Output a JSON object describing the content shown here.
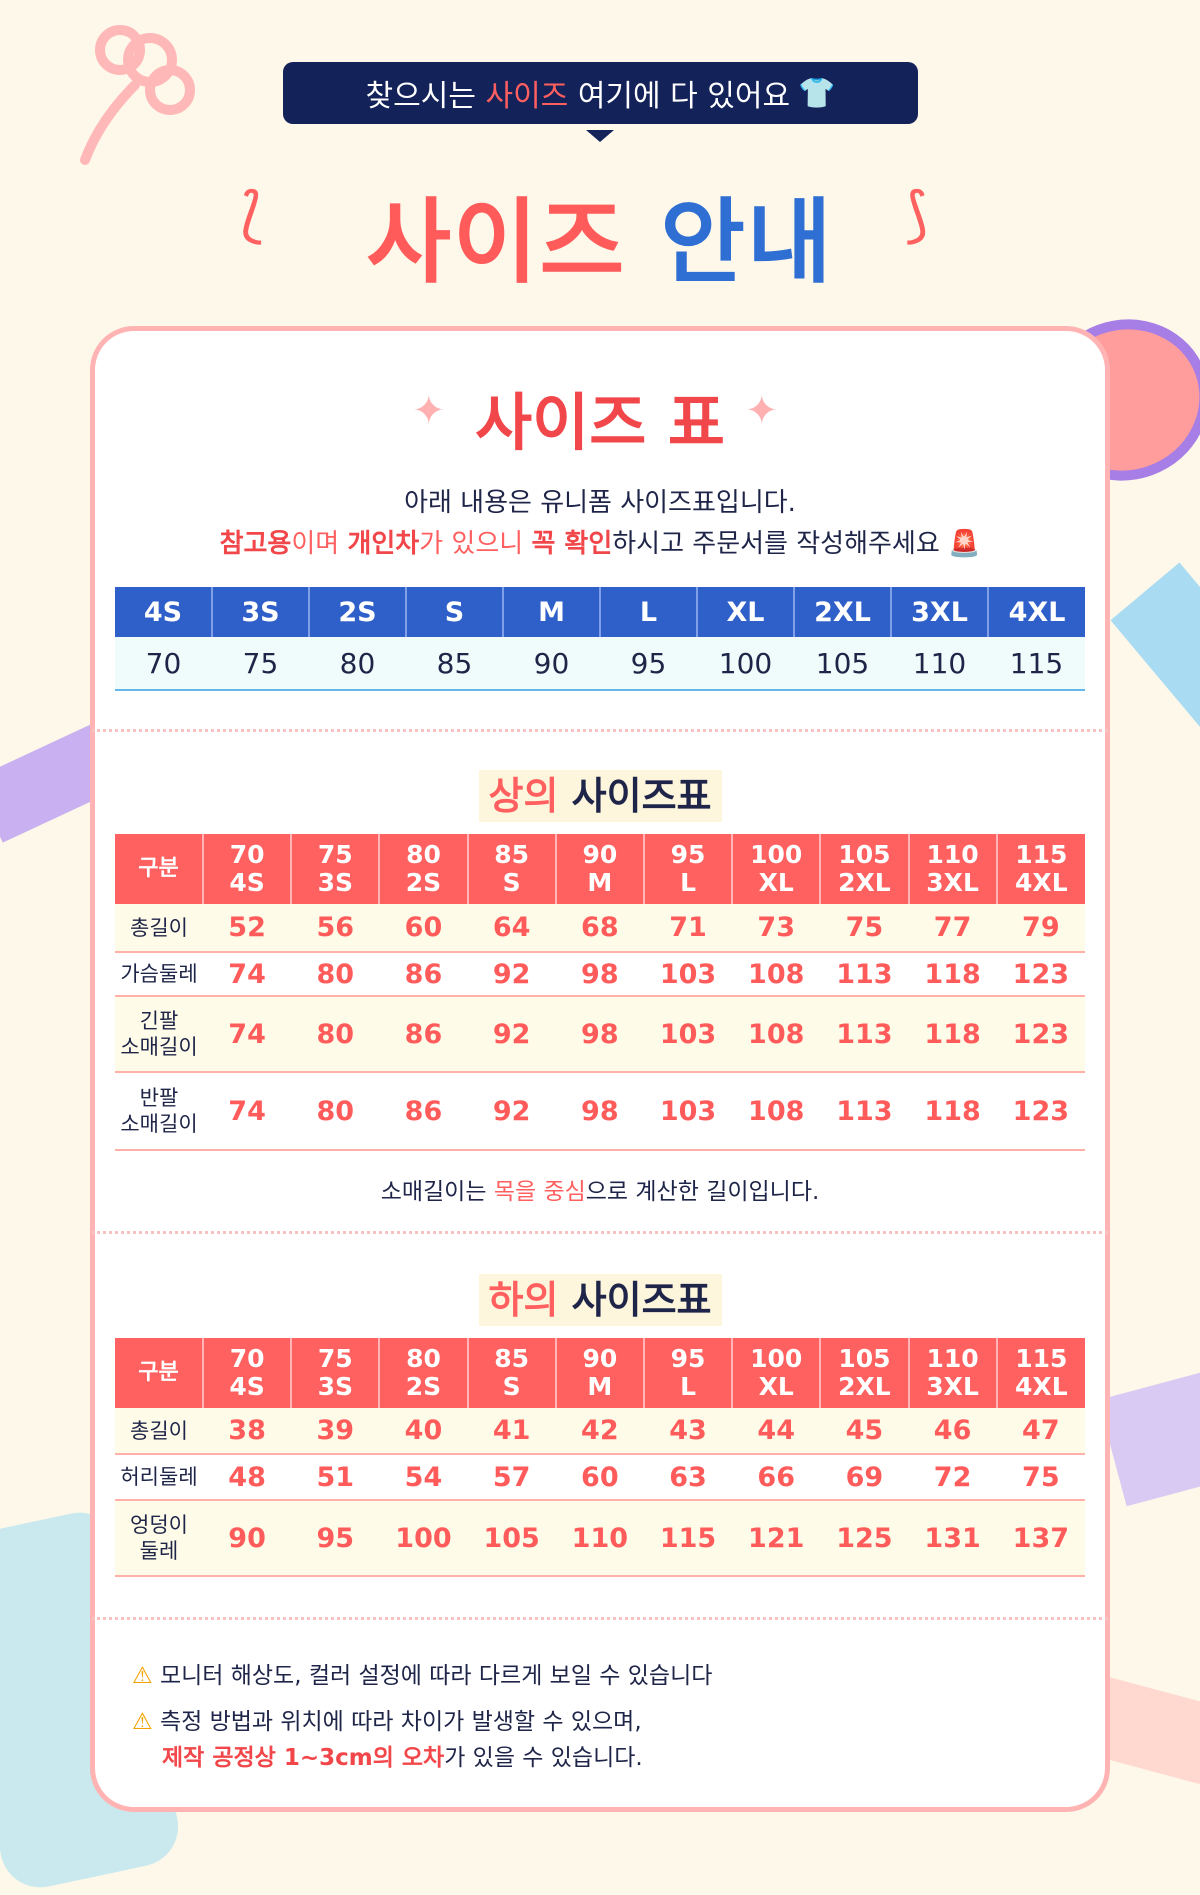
{
  "banner": {
    "pre": "찾으시는 ",
    "hl": "사이즈",
    "post": " 여기에 다 있어요",
    "icon": "tshirt-icon"
  },
  "hero": {
    "a": "사이즈",
    "b": "안내"
  },
  "card_title": "사이즈 표",
  "desc": {
    "line1": "아래 내용은 유니폼 사이즈표입니다.",
    "l2_red1": "참고용",
    "l2_a": "이며 ",
    "l2_red2": "개인차",
    "l2_b": "가 있으니 ",
    "l2_red3": "꼭 확인",
    "l2_c": "하시고 주문서를 작성해주세요",
    "icon": "siren-icon"
  },
  "size_table": {
    "labels": [
      "4S",
      "3S",
      "2S",
      "S",
      "M",
      "L",
      "XL",
      "2XL",
      "3XL",
      "4XL"
    ],
    "values": [
      "70",
      "75",
      "80",
      "85",
      "90",
      "95",
      "100",
      "105",
      "110",
      "115"
    ]
  },
  "top": {
    "title_hl": "상의",
    "title": " 사이즈표",
    "header": [
      "구분",
      "70\n4S",
      "75\n3S",
      "80\n2S",
      "85\nS",
      "90\nM",
      "95\nL",
      "100\nXL",
      "105\n2XL",
      "110\n3XL",
      "115\n4XL"
    ],
    "rows": [
      {
        "label": "총길이",
        "values": [
          "52",
          "56",
          "60",
          "64",
          "68",
          "71",
          "73",
          "75",
          "77",
          "79"
        ]
      },
      {
        "label": "가슴둘레",
        "values": [
          "74",
          "80",
          "86",
          "92",
          "98",
          "103",
          "108",
          "113",
          "118",
          "123"
        ]
      },
      {
        "label": "긴팔\n소매길이",
        "values": [
          "74",
          "80",
          "86",
          "92",
          "98",
          "103",
          "108",
          "113",
          "118",
          "123"
        ]
      },
      {
        "label": "반팔\n소매길이",
        "values": [
          "74",
          "80",
          "86",
          "92",
          "98",
          "103",
          "108",
          "113",
          "118",
          "123"
        ]
      }
    ],
    "note_a": "소매길이는 ",
    "note_hl": "목을 중심",
    "note_b": "으로 계산한 길이입니다."
  },
  "bottom": {
    "title_hl": "하의",
    "title": " 사이즈표",
    "header": [
      "구분",
      "70\n4S",
      "75\n3S",
      "80\n2S",
      "85\nS",
      "90\nM",
      "95\nL",
      "100\nXL",
      "105\n2XL",
      "110\n3XL",
      "115\n4XL"
    ],
    "rows": [
      {
        "label": "총길이",
        "values": [
          "38",
          "39",
          "40",
          "41",
          "42",
          "43",
          "44",
          "45",
          "46",
          "47"
        ]
      },
      {
        "label": "허리둘레",
        "values": [
          "48",
          "51",
          "54",
          "57",
          "60",
          "63",
          "66",
          "69",
          "72",
          "75"
        ]
      },
      {
        "label": "엉덩이\n둘레",
        "values": [
          "90",
          "95",
          "100",
          "105",
          "110",
          "115",
          "121",
          "125",
          "131",
          "137"
        ]
      }
    ]
  },
  "warnings": {
    "w1": "모니터 해상도, 컬러 설정에 따라 다르게 보일 수 있습니다",
    "w2": "측정 방법과 위치에 따라 차이가 발생할 수 있으며,",
    "w3_red": "제작 공정상 1~3cm의 오차",
    "w3": "가 있을 수 있습니다.",
    "icon": "warning-icon"
  },
  "colors": {
    "accent_red": "#ff5f5f",
    "blue": "#2f5fc9",
    "navy": "#13235a"
  }
}
